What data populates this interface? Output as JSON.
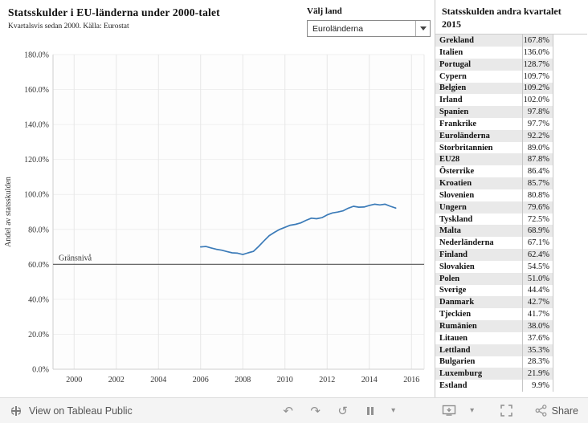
{
  "header": {
    "title": "Statsskulder i EU-länderna under 2000-talet",
    "subtitle": "Kvartalsvis sedan 2000. Källa: Eurostat"
  },
  "filter": {
    "label": "Välj land",
    "value": "Euroländerna"
  },
  "side_table": {
    "title": "Statsskulden andra kvartalet 2015",
    "rows": [
      {
        "country": "Grekland",
        "value": "167.8%"
      },
      {
        "country": "Italien",
        "value": "136.0%"
      },
      {
        "country": "Portugal",
        "value": "128.7%"
      },
      {
        "country": "Cypern",
        "value": "109.7%"
      },
      {
        "country": "Belgien",
        "value": "109.2%"
      },
      {
        "country": "Irland",
        "value": "102.0%"
      },
      {
        "country": "Spanien",
        "value": "97.8%"
      },
      {
        "country": "Frankrike",
        "value": "97.7%"
      },
      {
        "country": "Euroländerna",
        "value": "92.2%"
      },
      {
        "country": "Storbritannien",
        "value": "89.0%"
      },
      {
        "country": "EU28",
        "value": "87.8%"
      },
      {
        "country": "Österrike",
        "value": "86.4%"
      },
      {
        "country": "Kroatien",
        "value": "85.7%"
      },
      {
        "country": "Slovenien",
        "value": "80.8%"
      },
      {
        "country": "Ungern",
        "value": "79.6%"
      },
      {
        "country": "Tyskland",
        "value": "72.5%"
      },
      {
        "country": "Malta",
        "value": "68.9%"
      },
      {
        "country": "Nederländerna",
        "value": "67.1%"
      },
      {
        "country": "Finland",
        "value": "62.4%"
      },
      {
        "country": "Slovakien",
        "value": "54.5%"
      },
      {
        "country": "Polen",
        "value": "51.0%"
      },
      {
        "country": "Sverige",
        "value": "44.4%"
      },
      {
        "country": "Danmark",
        "value": "42.7%"
      },
      {
        "country": "Tjeckien",
        "value": "41.7%"
      },
      {
        "country": "Rumänien",
        "value": "38.0%"
      },
      {
        "country": "Litauen",
        "value": "37.6%"
      },
      {
        "country": "Lettland",
        "value": "35.3%"
      },
      {
        "country": "Bulgarien",
        "value": "28.3%"
      },
      {
        "country": "Luxemburg",
        "value": "21.9%"
      },
      {
        "country": "Estland",
        "value": "9.9%"
      }
    ]
  },
  "chart_data": {
    "type": "line",
    "title": "Statsskulder i EU-länderna under 2000-talet",
    "xlabel": "",
    "ylabel": "Andel av statsskulden",
    "ylim": [
      0,
      180
    ],
    "ytick_step": 20,
    "xlim": [
      1999,
      2016.6
    ],
    "xticks": [
      2000,
      2002,
      2004,
      2006,
      2008,
      2010,
      2012,
      2014,
      2016
    ],
    "grid": true,
    "line_color": "#3b7bb8",
    "reference_line": {
      "label": "Gränsnivå",
      "value": 60
    },
    "series": [
      {
        "name": "Euroländerna",
        "x": [
          2006,
          2006.25,
          2006.5,
          2006.75,
          2007,
          2007.25,
          2007.5,
          2007.75,
          2008,
          2008.25,
          2008.5,
          2008.75,
          2009,
          2009.25,
          2009.5,
          2009.75,
          2010,
          2010.25,
          2010.5,
          2010.75,
          2011,
          2011.25,
          2011.5,
          2011.75,
          2012,
          2012.25,
          2012.5,
          2012.75,
          2013,
          2013.25,
          2013.5,
          2013.75,
          2014,
          2014.25,
          2014.5,
          2014.75,
          2015,
          2015.25
        ],
        "y": [
          70.0,
          70.2,
          69.4,
          68.6,
          68.1,
          67.3,
          66.6,
          66.4,
          65.6,
          66.6,
          67.4,
          70.2,
          73.4,
          76.4,
          78.3,
          80.0,
          81.2,
          82.4,
          82.9,
          83.7,
          85.2,
          86.4,
          86.1,
          86.7,
          88.3,
          89.4,
          89.9,
          90.6,
          92.1,
          93.2,
          92.7,
          92.8,
          93.7,
          94.4,
          94.0,
          94.4,
          93.2,
          92.2
        ]
      }
    ]
  },
  "toolbar": {
    "view_label": "View on Tableau Public",
    "share_label": "Share",
    "icons": {
      "undo": "↶",
      "redo": "↷",
      "replay": "↺",
      "caret": "▾"
    }
  }
}
